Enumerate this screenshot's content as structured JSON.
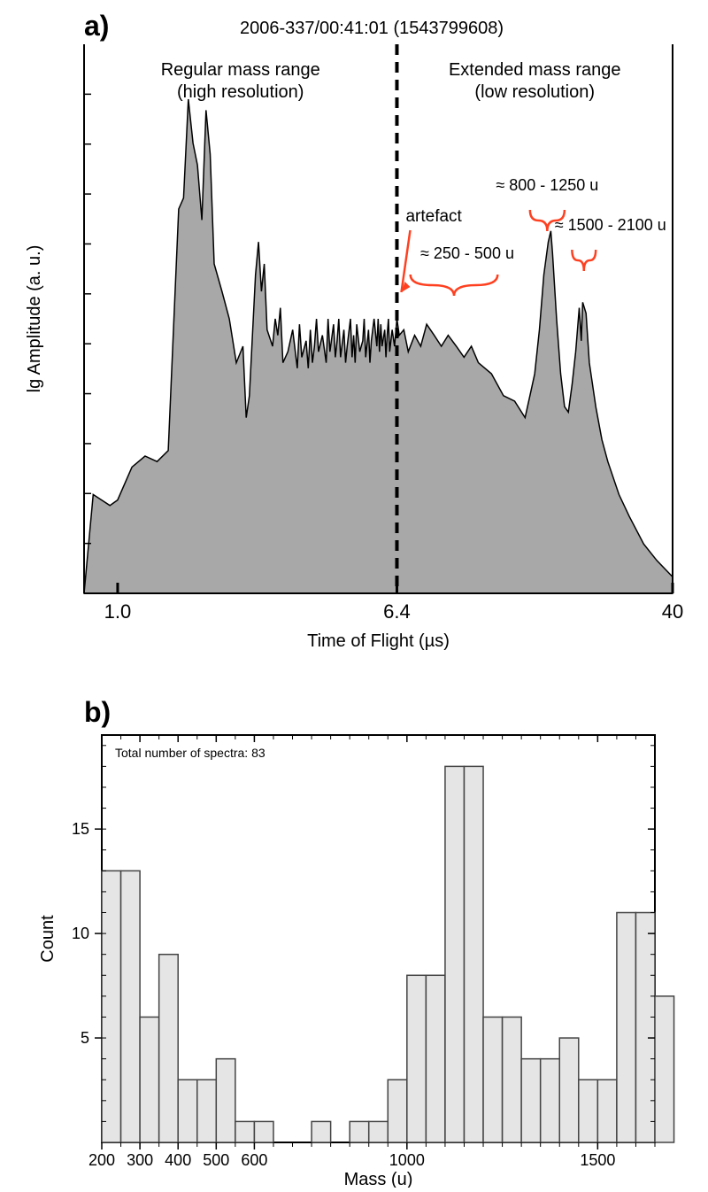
{
  "panel_a": {
    "label": "a)",
    "title": "2006-337/00:41:01 (1543799608)",
    "title_fontsize": 20,
    "xlabel": "Time of Flight (µs)",
    "ylabel": "lg Amplitude  (a. u.)",
    "label_fontsize": 20,
    "xlim": [
      0.8,
      40
    ],
    "xticks": [
      1.0,
      6.4,
      40
    ],
    "xtick_labels": [
      "1.0",
      "6.4",
      "40"
    ],
    "region_labels": {
      "left1": "Regular mass range",
      "left2": "(high resolution)",
      "right1": "Extended mass range",
      "right2": "(low resolution)"
    },
    "annotations": {
      "artefact": "artefact",
      "brace1": "≈ 250 - 500 u",
      "brace2": "≈ 800 - 1250 u",
      "brace3": "≈ 1500 - 2100 u"
    },
    "fill_color": "#a8a8a8",
    "stroke_color": "#000000",
    "annotation_color": "#ff4020",
    "divider_x": 6.4,
    "spectrum_points": [
      [
        0.85,
        18
      ],
      [
        0.95,
        16
      ],
      [
        1.0,
        17
      ],
      [
        1.1,
        23
      ],
      [
        1.2,
        25
      ],
      [
        1.3,
        24
      ],
      [
        1.4,
        26
      ],
      [
        1.5,
        70
      ],
      [
        1.55,
        72
      ],
      [
        1.6,
        90
      ],
      [
        1.65,
        82
      ],
      [
        1.7,
        78
      ],
      [
        1.75,
        68
      ],
      [
        1.8,
        88
      ],
      [
        1.85,
        80
      ],
      [
        1.9,
        60
      ],
      [
        2.0,
        55
      ],
      [
        2.1,
        50
      ],
      [
        2.2,
        42
      ],
      [
        2.3,
        45
      ],
      [
        2.35,
        32
      ],
      [
        2.4,
        36
      ],
      [
        2.5,
        58
      ],
      [
        2.55,
        64
      ],
      [
        2.6,
        55
      ],
      [
        2.65,
        60
      ],
      [
        2.7,
        48
      ],
      [
        2.8,
        45
      ],
      [
        2.85,
        50
      ],
      [
        2.9,
        47
      ],
      [
        2.95,
        52
      ],
      [
        3.0,
        42
      ],
      [
        3.1,
        44
      ],
      [
        3.2,
        48
      ],
      [
        3.3,
        41
      ],
      [
        3.35,
        49
      ],
      [
        3.4,
        43
      ],
      [
        3.5,
        46
      ],
      [
        3.55,
        41
      ],
      [
        3.6,
        48
      ],
      [
        3.65,
        42
      ],
      [
        3.7,
        45
      ],
      [
        3.75,
        50
      ],
      [
        3.8,
        44
      ],
      [
        3.9,
        47
      ],
      [
        4.0,
        42
      ],
      [
        4.05,
        50
      ],
      [
        4.1,
        44
      ],
      [
        4.2,
        49
      ],
      [
        4.25,
        43
      ],
      [
        4.3,
        46
      ],
      [
        4.35,
        50
      ],
      [
        4.4,
        43
      ],
      [
        4.5,
        48
      ],
      [
        4.55,
        42
      ],
      [
        4.6,
        45
      ],
      [
        4.7,
        50
      ],
      [
        4.75,
        43
      ],
      [
        4.8,
        47
      ],
      [
        4.85,
        42
      ],
      [
        4.9,
        49
      ],
      [
        5.0,
        44
      ],
      [
        5.1,
        46
      ],
      [
        5.15,
        50
      ],
      [
        5.2,
        43
      ],
      [
        5.3,
        48
      ],
      [
        5.35,
        42
      ],
      [
        5.4,
        46
      ],
      [
        5.5,
        50
      ],
      [
        5.6,
        45
      ],
      [
        5.65,
        50
      ],
      [
        5.7,
        44
      ],
      [
        5.75,
        49
      ],
      [
        5.8,
        45
      ],
      [
        5.9,
        48
      ],
      [
        5.95,
        43
      ],
      [
        6.0,
        47
      ],
      [
        6.05,
        50
      ],
      [
        6.1,
        44
      ],
      [
        6.2,
        48
      ],
      [
        6.3,
        45
      ],
      [
        6.4,
        50
      ],
      [
        6.5,
        47
      ],
      [
        6.7,
        48
      ],
      [
        6.9,
        44
      ],
      [
        7.2,
        47
      ],
      [
        7.5,
        45
      ],
      [
        7.8,
        49
      ],
      [
        8.2,
        47
      ],
      [
        8.6,
        45
      ],
      [
        9.0,
        47
      ],
      [
        9.5,
        45
      ],
      [
        10.0,
        43
      ],
      [
        10.5,
        45
      ],
      [
        11.0,
        42
      ],
      [
        12.0,
        40
      ],
      [
        13.0,
        36
      ],
      [
        14.0,
        35
      ],
      [
        15.0,
        32
      ],
      [
        15.5,
        36
      ],
      [
        16.0,
        40
      ],
      [
        16.5,
        48
      ],
      [
        17.0,
        58
      ],
      [
        17.5,
        64
      ],
      [
        17.8,
        66
      ],
      [
        18.0,
        62
      ],
      [
        18.5,
        50
      ],
      [
        19.0,
        40
      ],
      [
        19.5,
        34
      ],
      [
        20.0,
        33
      ],
      [
        20.5,
        38
      ],
      [
        21.0,
        44
      ],
      [
        21.5,
        52
      ],
      [
        21.8,
        46
      ],
      [
        22.0,
        53
      ],
      [
        22.5,
        51
      ],
      [
        23.0,
        42
      ],
      [
        24.0,
        34
      ],
      [
        25.0,
        28
      ],
      [
        26.0,
        24
      ],
      [
        28.0,
        18
      ],
      [
        30.0,
        14
      ],
      [
        33.0,
        9
      ],
      [
        36.0,
        6
      ],
      [
        40.0,
        3
      ]
    ]
  },
  "panel_b": {
    "label": "b)",
    "xlabel": "Mass (u)",
    "ylabel": "Count",
    "label_fontsize": 20,
    "note": "Total number of spectra: 83",
    "note_fontsize": 14,
    "xlim": [
      200,
      1650
    ],
    "ylim": [
      0,
      19.5
    ],
    "xticks": [
      200,
      300,
      400,
      500,
      600,
      1000,
      1500
    ],
    "yticks": [
      5,
      10,
      15
    ],
    "bin_width": 50,
    "bar_fill": "#e5e5e5",
    "bar_stroke": "#444444",
    "bars": [
      [
        200,
        13
      ],
      [
        250,
        13
      ],
      [
        300,
        6
      ],
      [
        350,
        9
      ],
      [
        400,
        3
      ],
      [
        450,
        3
      ],
      [
        500,
        4
      ],
      [
        550,
        1
      ],
      [
        600,
        1
      ],
      [
        650,
        0
      ],
      [
        700,
        0
      ],
      [
        750,
        1
      ],
      [
        800,
        0
      ],
      [
        850,
        1
      ],
      [
        900,
        1
      ],
      [
        950,
        3
      ],
      [
        1000,
        8
      ],
      [
        1050,
        8
      ],
      [
        1100,
        18
      ],
      [
        1150,
        18
      ],
      [
        1200,
        6
      ],
      [
        1250,
        6
      ],
      [
        1300,
        4
      ],
      [
        1350,
        4
      ],
      [
        1400,
        5
      ],
      [
        1450,
        3
      ],
      [
        1500,
        3
      ],
      [
        1550,
        11
      ],
      [
        1600,
        11
      ],
      [
        1650,
        7
      ]
    ]
  }
}
